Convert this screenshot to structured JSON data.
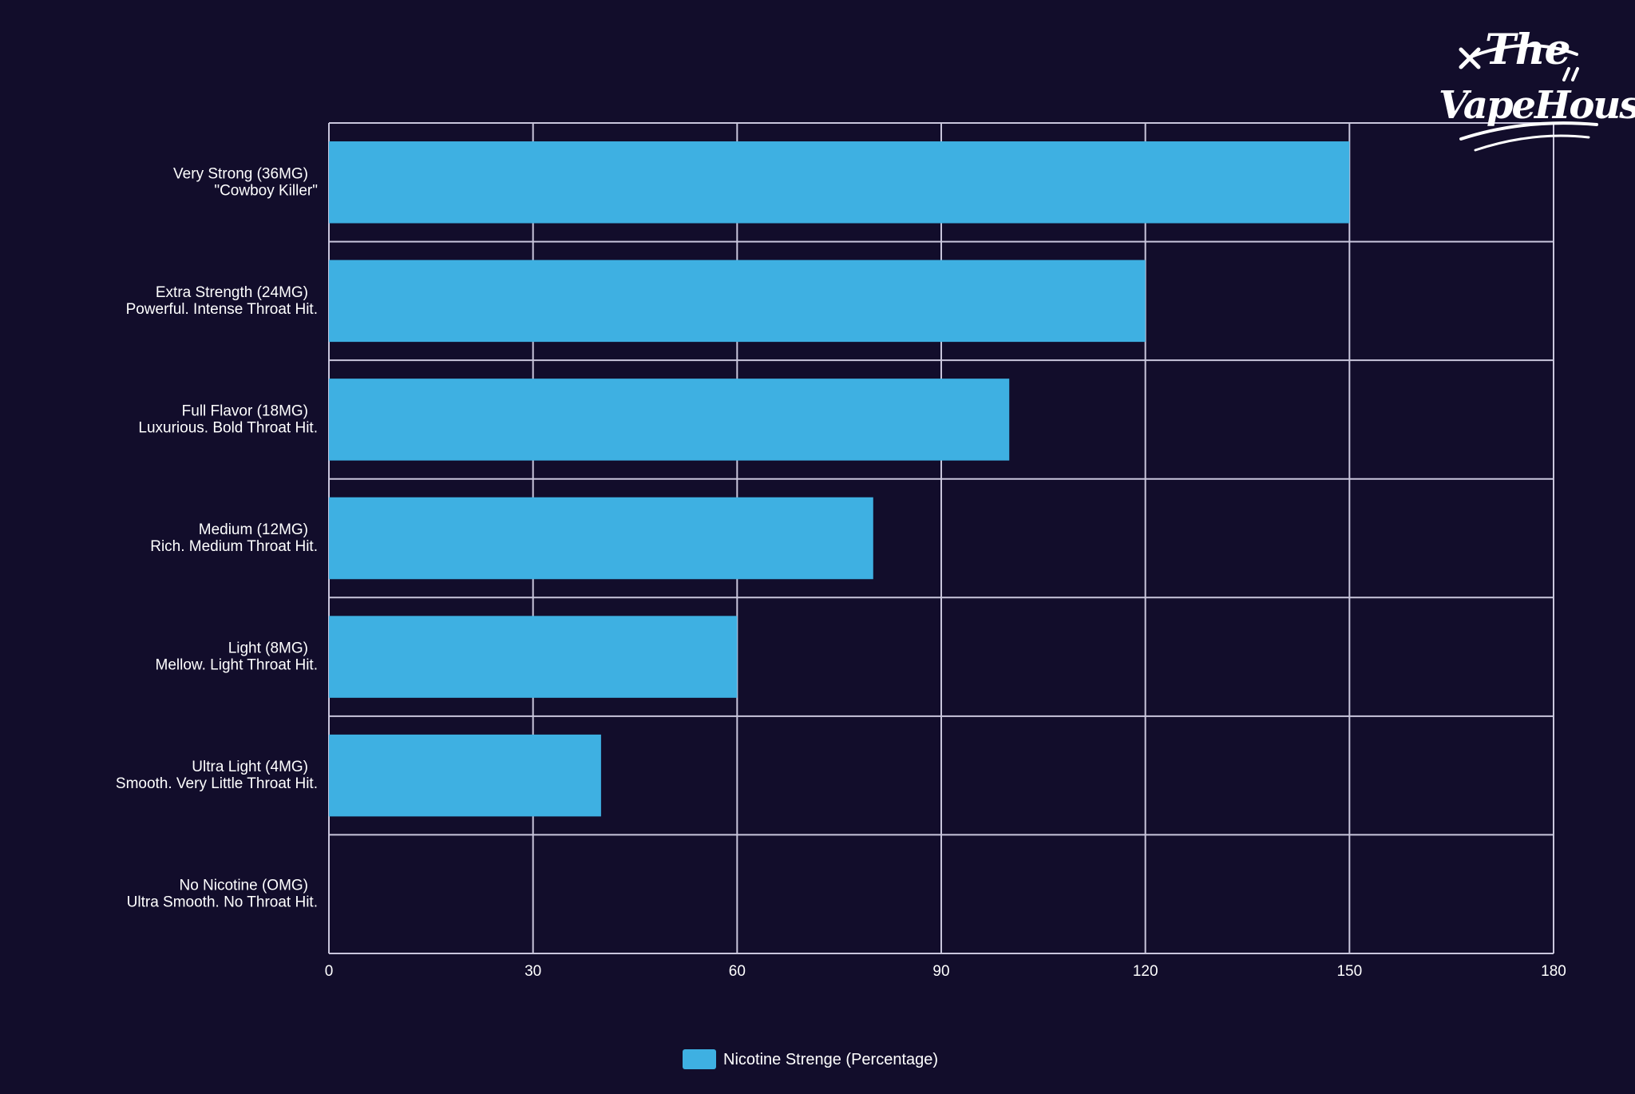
{
  "chart_data": {
    "type": "bar",
    "orientation": "horizontal",
    "categories": [
      [
        "Very Strong (36MG)",
        "\"Cowboy Killer\""
      ],
      [
        "Extra Strength (24MG)",
        "Powerful. Intense Throat Hit."
      ],
      [
        "Full Flavor (18MG)",
        "Luxurious. Bold Throat Hit."
      ],
      [
        "Medium (12MG)",
        "Rich. Medium Throat Hit."
      ],
      [
        "Light (8MG)",
        "Mellow. Light Throat Hit."
      ],
      [
        "Ultra Light (4MG)",
        "Smooth. Very Little Throat Hit."
      ],
      [
        "No Nicotine (OMG)",
        "Ultra Smooth. No Throat Hit."
      ]
    ],
    "series": [
      {
        "name": "Nicotine Strenge (Percentage)",
        "values": [
          150,
          120,
          100,
          80,
          60,
          40,
          0
        ],
        "color": "#3eb0e2"
      }
    ],
    "xlim": [
      0,
      180
    ],
    "xticks": [
      0,
      30,
      60,
      90,
      120,
      150,
      180
    ],
    "grid": true,
    "legend_position": "bottom-center",
    "colors": {
      "background": "#120d2b",
      "grid": "#c9c6dc",
      "text": "#ffffff",
      "bar": "#3eb0e2"
    }
  },
  "logo": {
    "line1": "The",
    "line2": "VapeHouse"
  }
}
